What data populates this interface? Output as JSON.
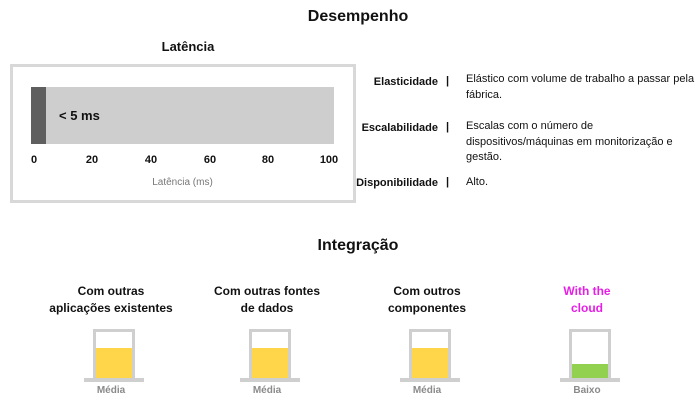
{
  "performance": {
    "title": "Desempenho",
    "latency": {
      "title": "Latência",
      "value_label": "< 5 ms"
    },
    "definitions": [
      {
        "term": "Elasticidade",
        "separator": "|",
        "description": "Elástico com volume de trabalho a passar pela fábrica."
      },
      {
        "term": "Escalabilidade",
        "separator": "|",
        "description": "Escalas com o número de dispositivos/máquinas em monitorização e gestão."
      },
      {
        "term": "Disponibilidade",
        "separator": "|",
        "description": "Alto."
      }
    ]
  },
  "chart_data": {
    "type": "bar",
    "orientation": "horizontal",
    "categories": [
      ""
    ],
    "values": [
      5
    ],
    "value_label": "< 5 ms",
    "title": "Latência",
    "xlabel": "Latência (ms)",
    "ylabel": "",
    "xlim": [
      0,
      100
    ],
    "xticks": [
      "0",
      "20",
      "40",
      "60",
      "80",
      "100"
    ],
    "grid": false,
    "colors": {
      "fill": "#5f5f5f",
      "track": "#cecece"
    }
  },
  "integration": {
    "title": "Integração",
    "cards": [
      {
        "title_line1": "Com outras",
        "title_line2": "aplicações existentes",
        "level": "Média",
        "fill_fraction": 0.67,
        "fill_color": "#ffd54a",
        "title_color": "#111111"
      },
      {
        "title_line1": "Com outras fontes",
        "title_line2": "de dados",
        "level": "Média",
        "fill_fraction": 0.67,
        "fill_color": "#ffd54a",
        "title_color": "#111111"
      },
      {
        "title_line1": "Com outros",
        "title_line2": "componentes",
        "level": "Média",
        "fill_fraction": 0.67,
        "fill_color": "#ffd54a",
        "title_color": "#111111"
      },
      {
        "title_line1": "With the",
        "title_line2": "cloud",
        "level": "Baixo",
        "fill_fraction": 0.33,
        "fill_color": "#92d050",
        "title_color": "#e61ee6"
      }
    ]
  }
}
